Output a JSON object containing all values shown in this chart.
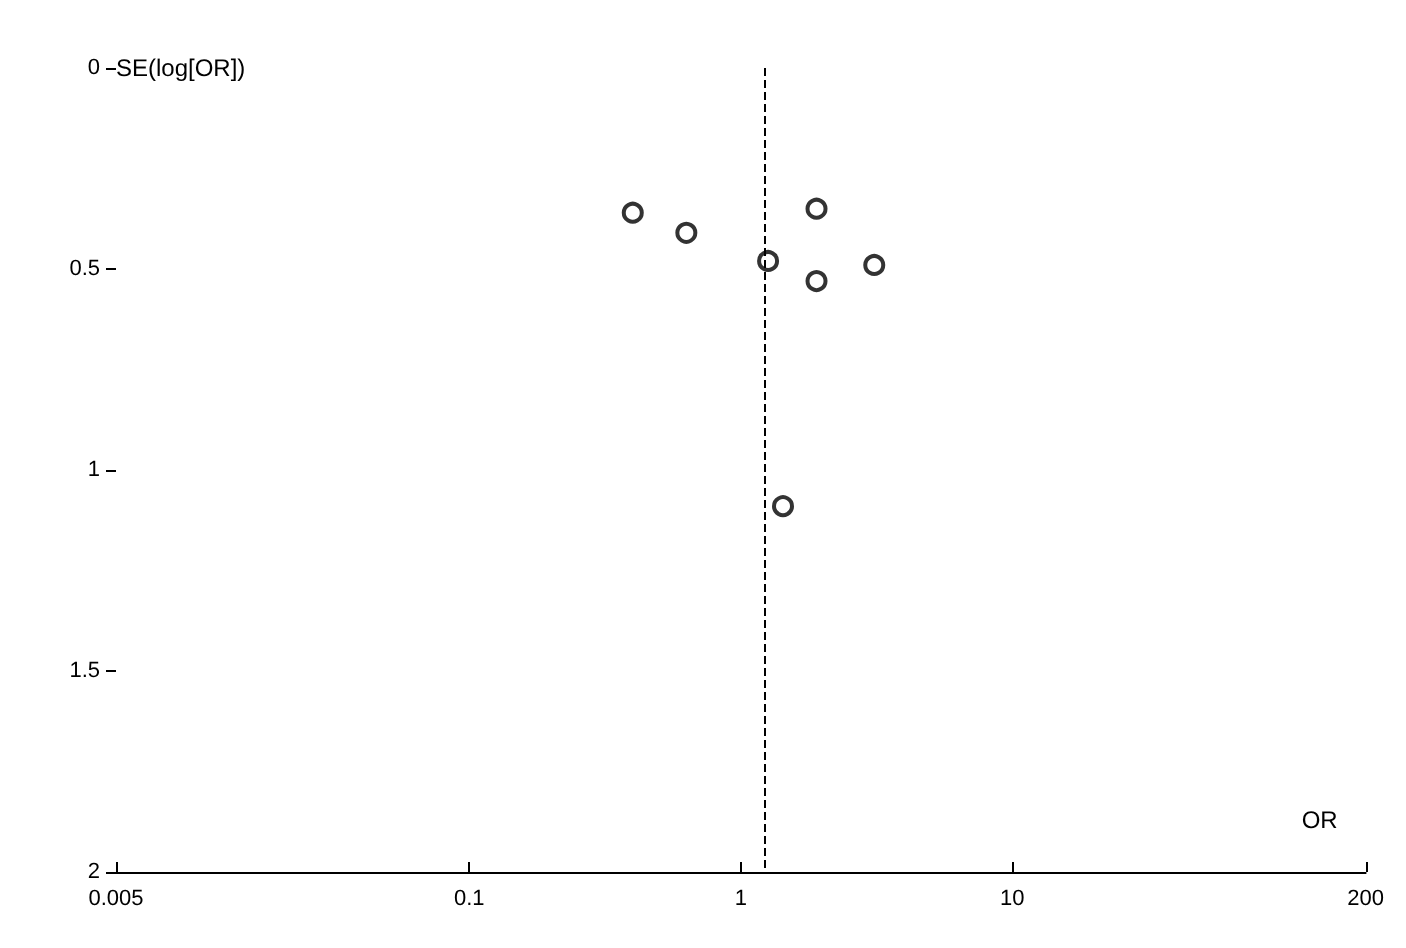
{
  "chart_data": {
    "type": "scatter",
    "xlabel": "OR",
    "ylabel": "SE(log[OR])",
    "x": [
      0.4,
      0.63,
      1.26,
      1.9,
      1.9,
      3.1,
      1.43
    ],
    "values": [
      0.36,
      0.41,
      0.48,
      0.35,
      0.53,
      0.49,
      1.09
    ],
    "color": "#000000",
    "marker": "circle",
    "log": "x",
    "grid": false,
    "xlim": [
      0.005,
      200
    ],
    "xticks": [
      0.005,
      0.1,
      1,
      10,
      200
    ],
    "ylim": [
      2,
      0
    ],
    "yticks": [
      0,
      0.5,
      1,
      1.5,
      2
    ],
    "ref_lines": [
      {
        "axis": "x",
        "value": 1.22,
        "line_style": "dashed",
        "color": "#000000"
      }
    ]
  }
}
